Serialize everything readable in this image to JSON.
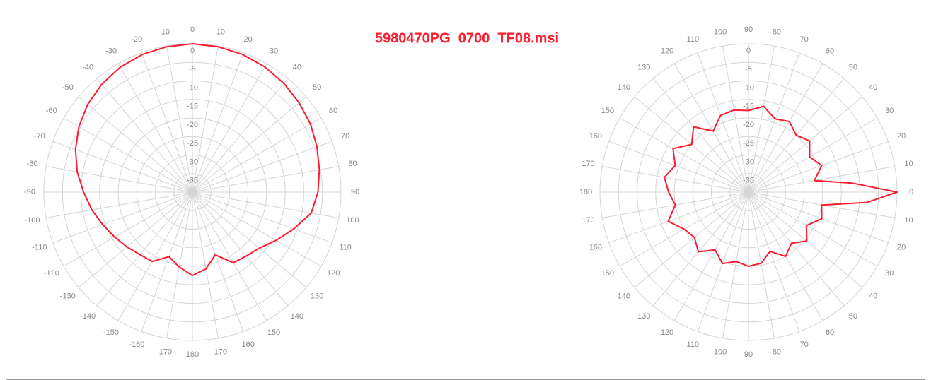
{
  "title": "5980470PG_0700_TF08.msi",
  "chart_data": [
    {
      "type": "polar",
      "theta_zero": "N",
      "direction": "clockwise",
      "rlim": [
        -40,
        0
      ],
      "rticks": [
        0,
        -5,
        -10,
        -15,
        -20,
        -25,
        -30,
        -35
      ],
      "thetaticks": [
        0,
        10,
        20,
        30,
        40,
        50,
        60,
        70,
        80,
        90,
        100,
        110,
        120,
        130,
        140,
        150,
        160,
        170,
        180,
        -170,
        -160,
        -150,
        -140,
        -130,
        -120,
        -110,
        -100,
        -90,
        -80,
        -70,
        -60,
        -50,
        -40,
        -30,
        -20,
        -10
      ],
      "grid": true,
      "series": [
        {
          "color": "#ff1a2e",
          "x": [
            -180,
            -170,
            -160,
            -150,
            -140,
            -130,
            -120,
            -110,
            -100,
            -90,
            -80,
            -70,
            -60,
            -50,
            -40,
            -30,
            -20,
            -10,
            0,
            10,
            20,
            30,
            40,
            50,
            60,
            70,
            80,
            90,
            100,
            110,
            120,
            130,
            140,
            150,
            160,
            170,
            180
          ],
          "values": [
            -17.5,
            -19.5,
            -21.5,
            -18.4,
            -18,
            -17,
            -15.8,
            -14.3,
            -12.5,
            -10.7,
            -8.5,
            -6.5,
            -4.7,
            -3.2,
            -2,
            -1.1,
            -0.5,
            -0.2,
            0,
            -0.2,
            -0.5,
            -1,
            -1.7,
            -2.5,
            -3.3,
            -4.3,
            -5.3,
            -6.2,
            -7.5,
            -11,
            -14,
            -16.5,
            -17.5,
            -18,
            -22,
            -19,
            -17.5
          ]
        }
      ]
    },
    {
      "type": "polar",
      "theta_zero": "E",
      "direction": "clockwise",
      "rlim": [
        -40,
        0
      ],
      "rticks": [
        0,
        -5,
        -10,
        -15,
        -20,
        -25,
        -30,
        -35
      ],
      "thetaticks": [
        0,
        10,
        20,
        30,
        40,
        50,
        60,
        70,
        80,
        90,
        100,
        110,
        120,
        130,
        140,
        150,
        160,
        170,
        180,
        170,
        160,
        150,
        140,
        130,
        120,
        110,
        100,
        90,
        80,
        70,
        60,
        50,
        40,
        30,
        20,
        10
      ],
      "grid": true,
      "series": [
        {
          "color": "#ff1a2e",
          "x": [
            -180,
            -170,
            -160,
            -150,
            -140,
            -130,
            -120,
            -110,
            -100,
            -90,
            -80,
            -70,
            -60,
            -50,
            -40,
            -30,
            -20,
            -10,
            -5,
            0,
            5,
            10,
            20,
            30,
            40,
            50,
            60,
            70,
            80,
            90,
            100,
            110,
            120,
            130,
            140,
            150,
            160,
            170,
            180
          ],
          "values": [
            -18.5,
            -17,
            -19,
            -16.5,
            -20,
            -17,
            -21,
            -18,
            -17.5,
            -18,
            -16.5,
            -19,
            -18,
            -20,
            -18.5,
            -21,
            -19,
            -22,
            -12,
            0,
            -8,
            -20,
            -19,
            -22,
            -19.5,
            -22,
            -20,
            -23,
            -20.5,
            -20,
            -21,
            -19.5,
            -22,
            -19,
            -21,
            -20,
            -17,
            -20,
            -18.5
          ]
        }
      ]
    }
  ]
}
